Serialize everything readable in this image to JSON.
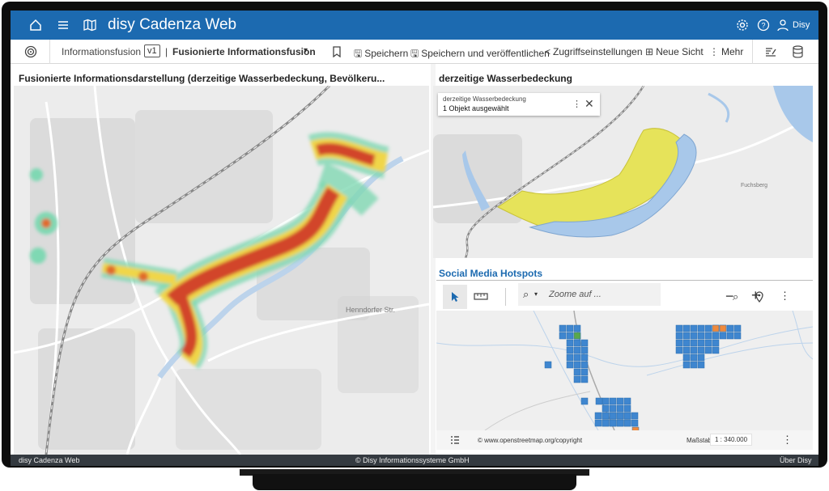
{
  "app": {
    "title": "disy Cadenza Web",
    "user": "Disy"
  },
  "toolbar": {
    "breadcrumb": "Informationsfusion",
    "version": "v1",
    "view_title": "Fusionierte  Informationsfusion",
    "save": "Speichern",
    "save_publish": "Speichern und veröffentlichen",
    "access": "Zugriffseinstellungen",
    "new_view": "Neue Sicht",
    "more": "Mehr"
  },
  "left_panel": {
    "title": "Fusionierte Informationsdarstellung (derzeitige Wasserbedeckung, Bevölkeru..."
  },
  "right_top_panel": {
    "title": "derzeitige Wasserbedeckung",
    "popup_layer": "derzeitige Wasserbedeckung",
    "popup_selection": "1 Objekt ausgewählt"
  },
  "right_bottom_panel": {
    "title": "Social Media Hotspots",
    "zoom_placeholder": "Zoome auf ...",
    "copyright": "© www.openstreetmap.org/copyright",
    "scale_label": "Maßstab",
    "scale_value": "1 : 340.000"
  },
  "map_labels": {
    "street_1": "Henndorfer Str.",
    "place_1": "Fuchsberg"
  },
  "footer": {
    "left": "disy Cadenza Web",
    "center": "© Disy Informationssysteme GmbH",
    "right": "Über Disy"
  },
  "colors": {
    "brand": "#1c6ab0",
    "water": "#a8c8ea",
    "flood": "#e6e35a",
    "hot": "#d2452a",
    "grid_blue": "#3f86cf",
    "grid_orange": "#f08a3c",
    "grid_green": "#5aa84b"
  }
}
